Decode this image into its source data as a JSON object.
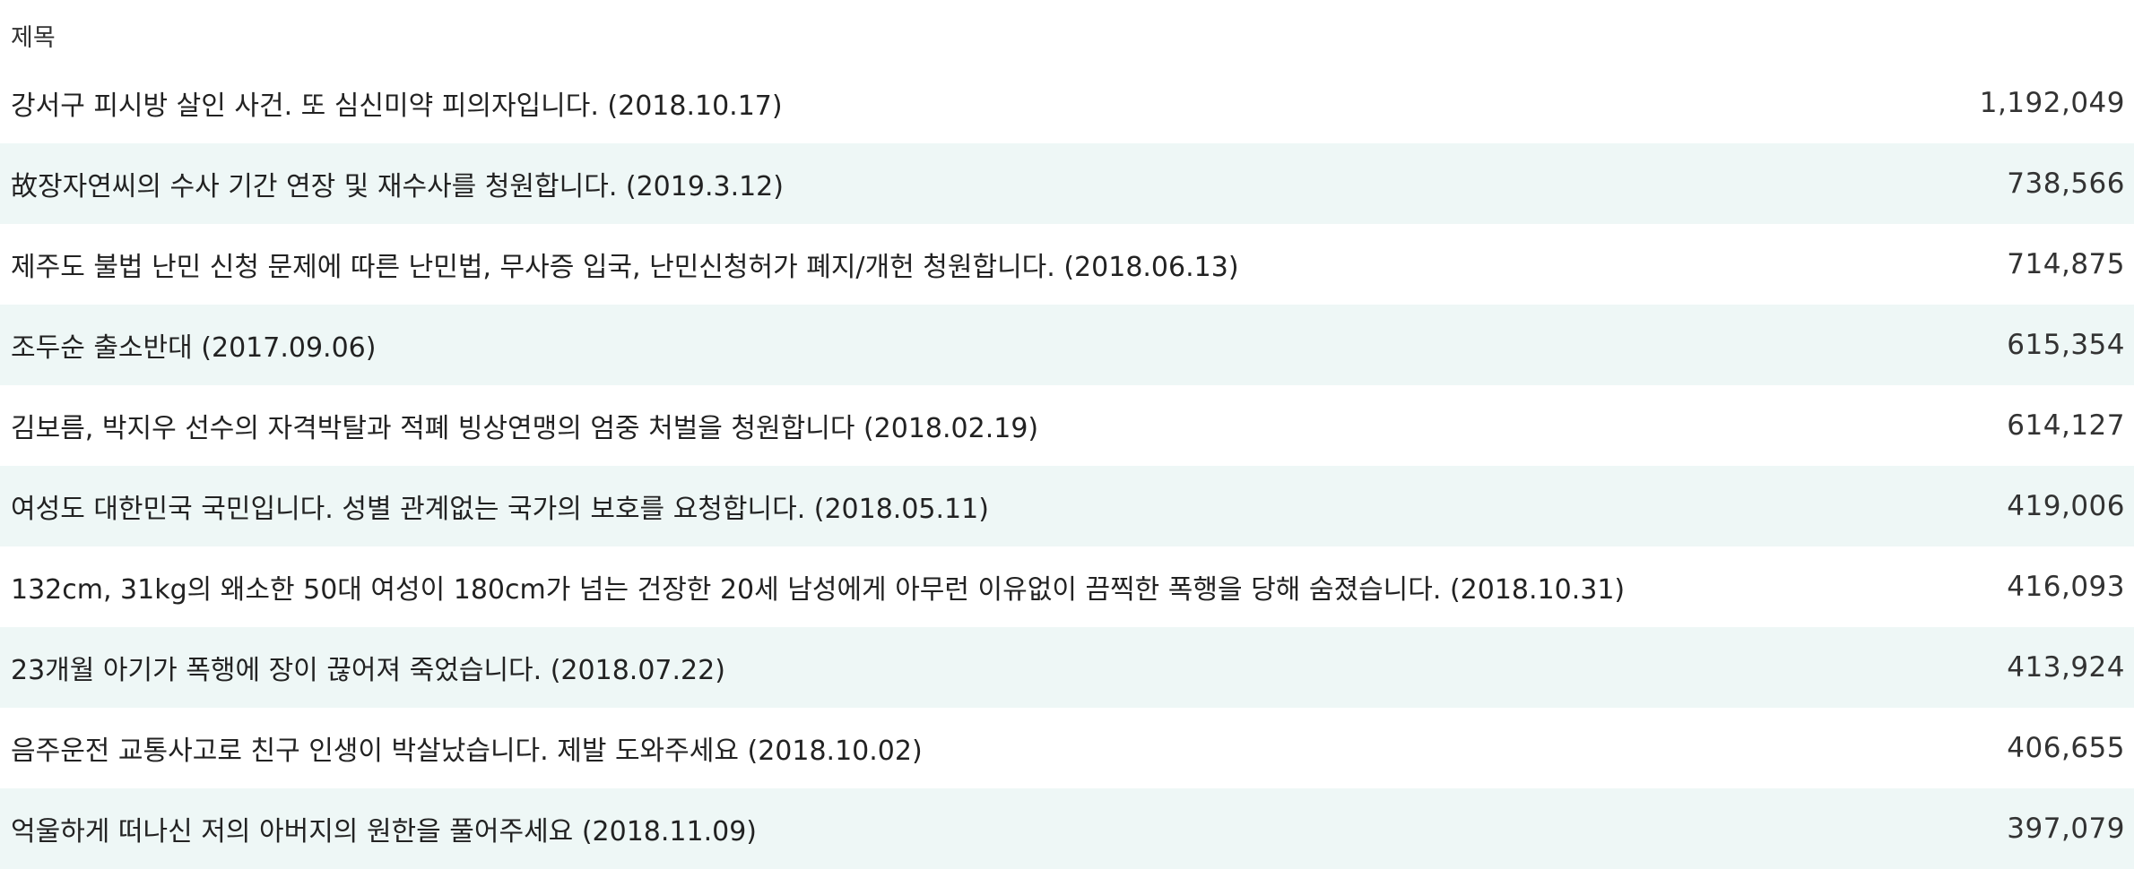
{
  "header": {
    "title": "제목"
  },
  "rows": [
    {
      "title": "강서구 피시방 살인 사건. 또 심신미약 피의자입니다. (2018.10.17)",
      "count": "1,192,049"
    },
    {
      "title": "故장자연씨의 수사 기간 연장 및 재수사를 청원합니다. (2019.3.12)",
      "count": "738,566"
    },
    {
      "title": "제주도 불법 난민 신청 문제에 따른 난민법, 무사증 입국, 난민신청허가 폐지/개헌 청원합니다. (2018.06.13)",
      "count": "714,875"
    },
    {
      "title": "조두순 출소반대 (2017.09.06)",
      "count": "615,354"
    },
    {
      "title": "김보름, 박지우 선수의 자격박탈과 적폐 빙상연맹의 엄중 처벌을 청원합니다 (2018.02.19)",
      "count": "614,127"
    },
    {
      "title": "여성도 대한민국 국민입니다. 성별 관계없는 국가의 보호를 요청합니다. (2018.05.11)",
      "count": "419,006"
    },
    {
      "title": "132cm, 31kg의 왜소한 50대 여성이 180cm가 넘는 건장한 20세 남성에게 아무런 이유없이 끔찍한 폭행을 당해 숨졌습니다. (2018.10.31)",
      "count": "416,093"
    },
    {
      "title": "23개월 아기가 폭행에 장이 끊어져 죽었습니다. (2018.07.22)",
      "count": "413,924"
    },
    {
      "title": "음주운전 교통사고로 친구 인생이 박살났습니다. 제발 도와주세요 (2018.10.02)",
      "count": "406,655"
    },
    {
      "title": "억울하게 떠나신 저의 아버지의 원한을 풀어주세요 (2018.11.09)",
      "count": "397,079"
    }
  ]
}
